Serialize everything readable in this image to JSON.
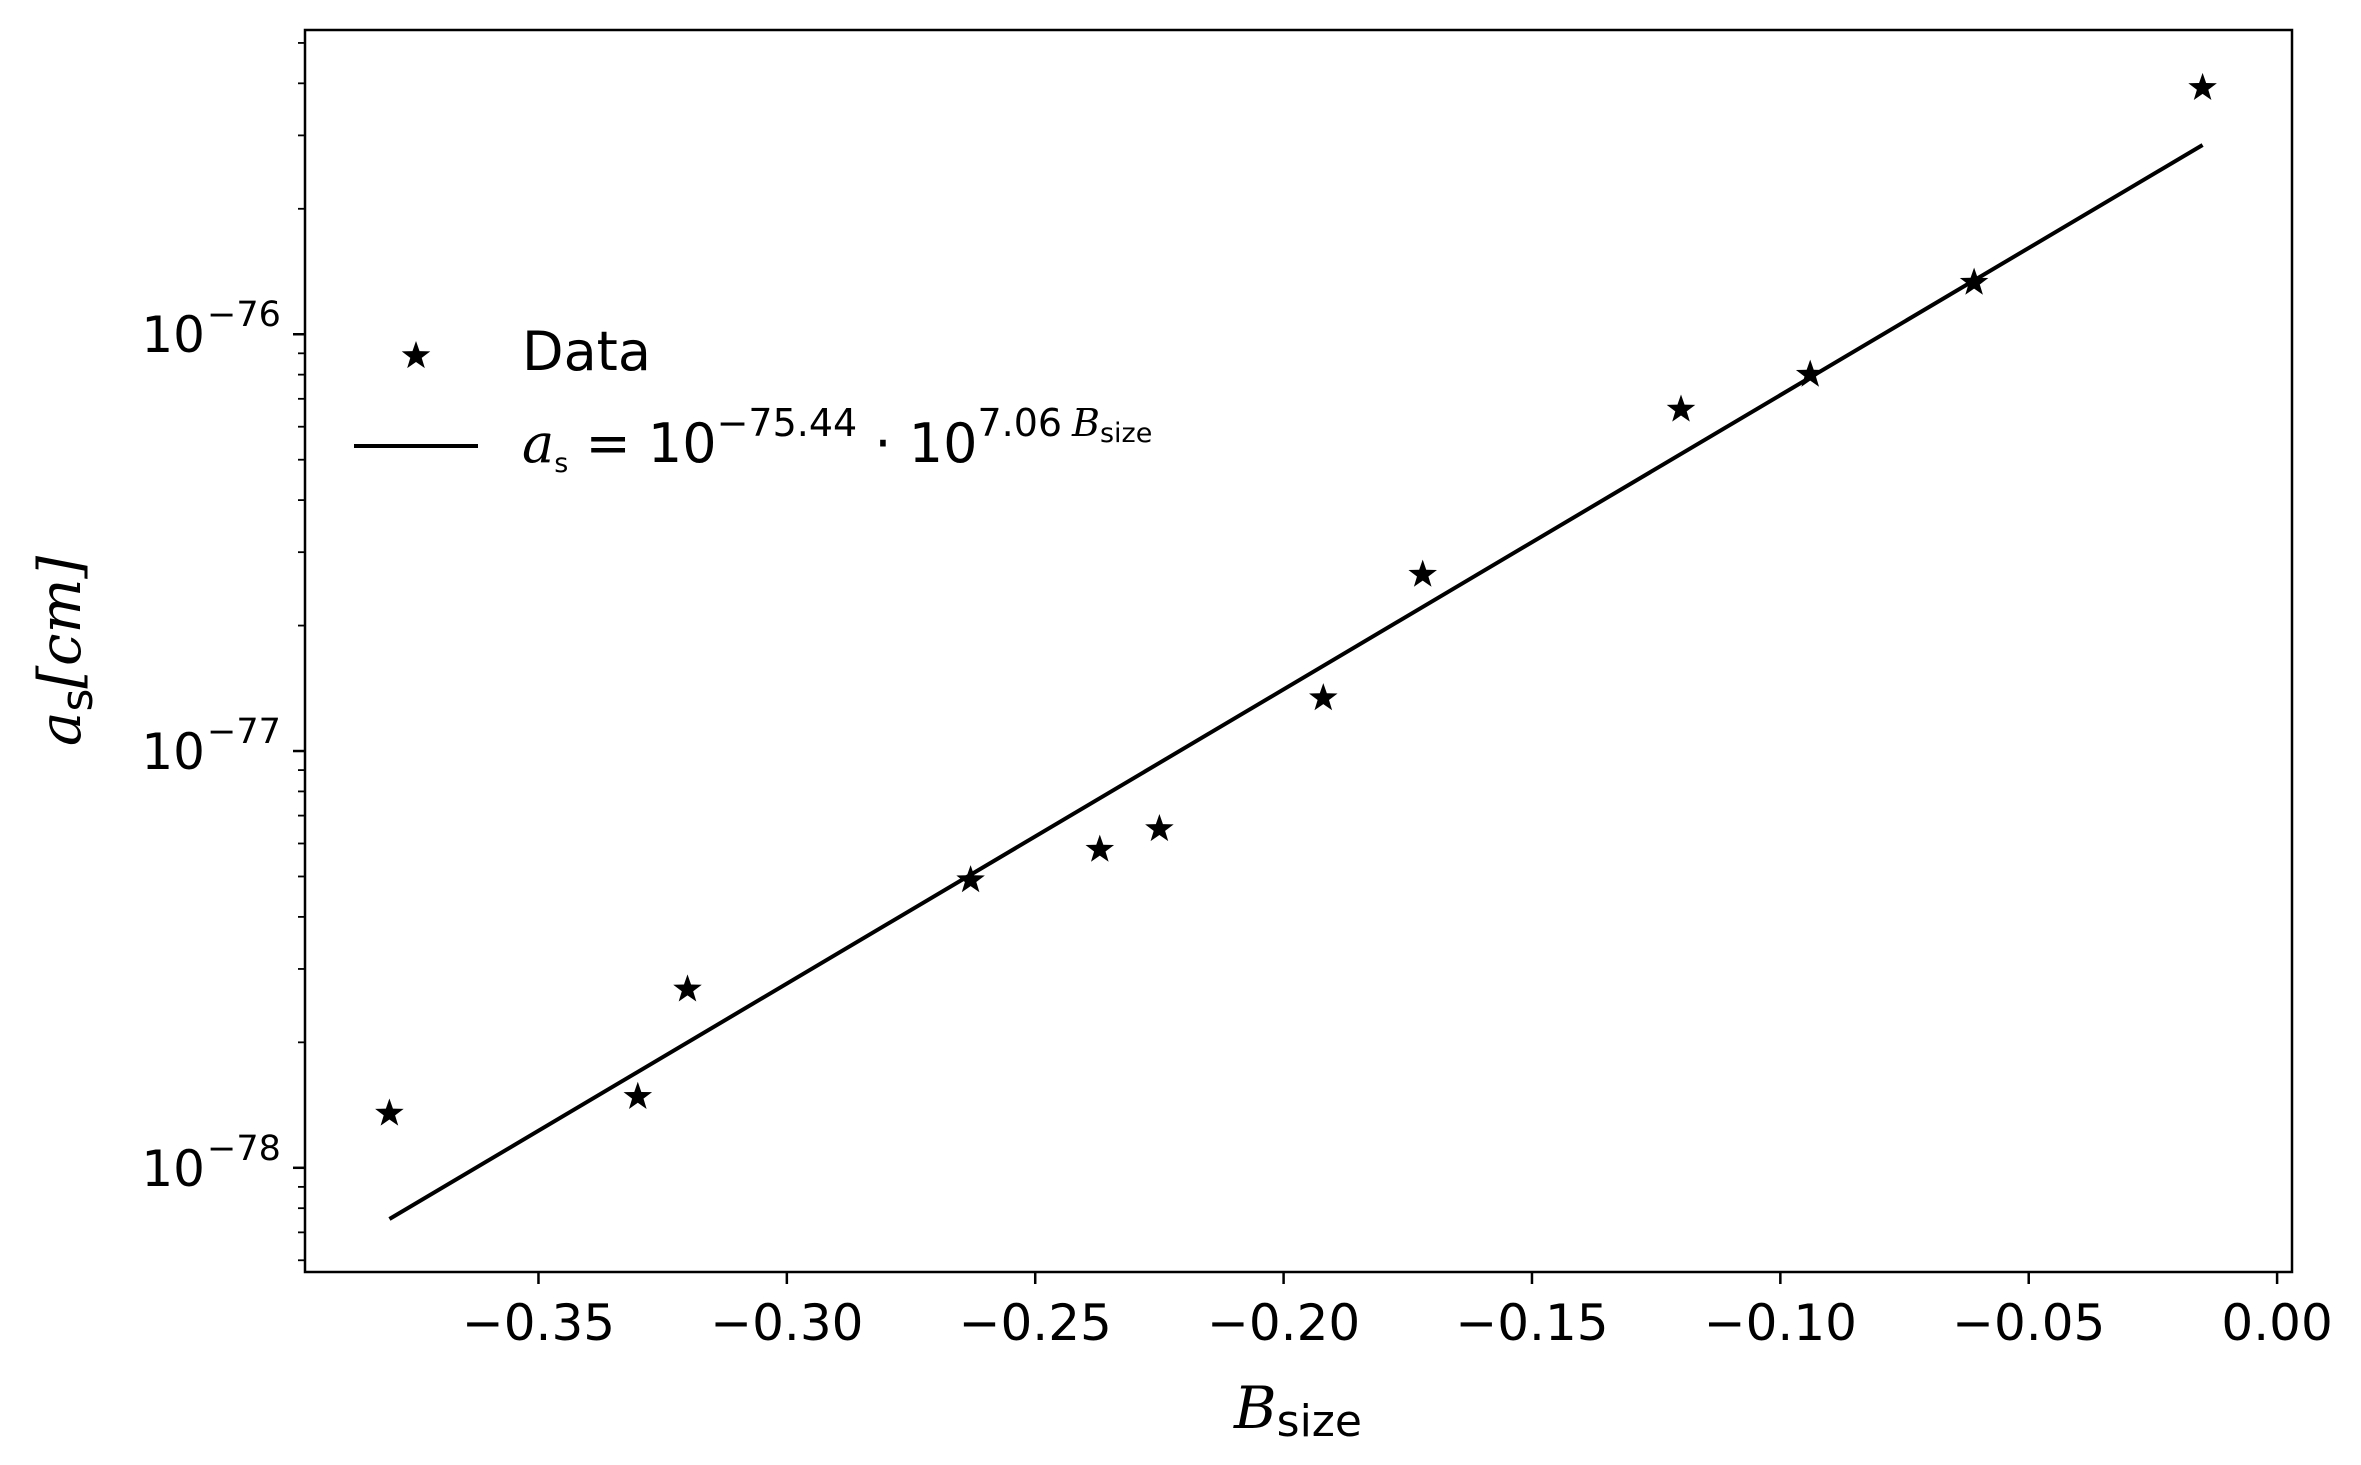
{
  "chart_data": {
    "type": "scatter",
    "xlabel": {
      "main": "B",
      "sub": "size"
    },
    "ylabel": {
      "main": "a",
      "sub": "s",
      "unit": "[cm]"
    },
    "xlim": [
      -0.397,
      0.003
    ],
    "ylim_log10": [
      -78.25,
      -75.27
    ],
    "y_scale": "log",
    "x_ticks": [
      -0.35,
      -0.3,
      -0.25,
      -0.2,
      -0.15,
      -0.1,
      -0.05,
      0.0
    ],
    "x_tick_labels": [
      "−0.35",
      "−0.30",
      "−0.25",
      "−0.20",
      "−0.15",
      "−0.10",
      "−0.05",
      "0.00"
    ],
    "y_ticks_log10": [
      -78,
      -77,
      -76
    ],
    "y_tick_labels": [
      {
        "base": "10",
        "exp": "−78"
      },
      {
        "base": "10",
        "exp": "−77"
      },
      {
        "base": "10",
        "exp": "−76"
      }
    ],
    "legend_position": "upper left",
    "series": [
      {
        "name": "Data",
        "marker": "star",
        "color": "#000000",
        "points": [
          {
            "x": -0.38,
            "y": 1.35e-78
          },
          {
            "x": -0.33,
            "y": 1.48e-78
          },
          {
            "x": -0.32,
            "y": 2.68e-78
          },
          {
            "x": -0.263,
            "y": 4.9e-78
          },
          {
            "x": -0.237,
            "y": 5.8e-78
          },
          {
            "x": -0.225,
            "y": 6.5e-78
          },
          {
            "x": -0.192,
            "y": 1.34e-77
          },
          {
            "x": -0.172,
            "y": 2.65e-77
          },
          {
            "x": -0.12,
            "y": 6.6e-77
          },
          {
            "x": -0.094,
            "y": 8e-77
          },
          {
            "x": -0.061,
            "y": 1.33e-76
          },
          {
            "x": -0.015,
            "y": 3.9e-76
          }
        ]
      },
      {
        "name": "a_s = 10^-75.44 · 10^(7.06 B_size)",
        "type": "line",
        "color": "#000000",
        "intercept_log10": -75.44,
        "slope": 7.06,
        "x_range": [
          -0.38,
          -0.015
        ],
        "label_parts": {
          "a": "a",
          "a_sub": "s",
          "eq": " = 10",
          "exp1": "−75.44",
          "dot": " · 10",
          "exp2": "7.06",
          "b": "B",
          "b_sub": "size"
        }
      }
    ]
  }
}
